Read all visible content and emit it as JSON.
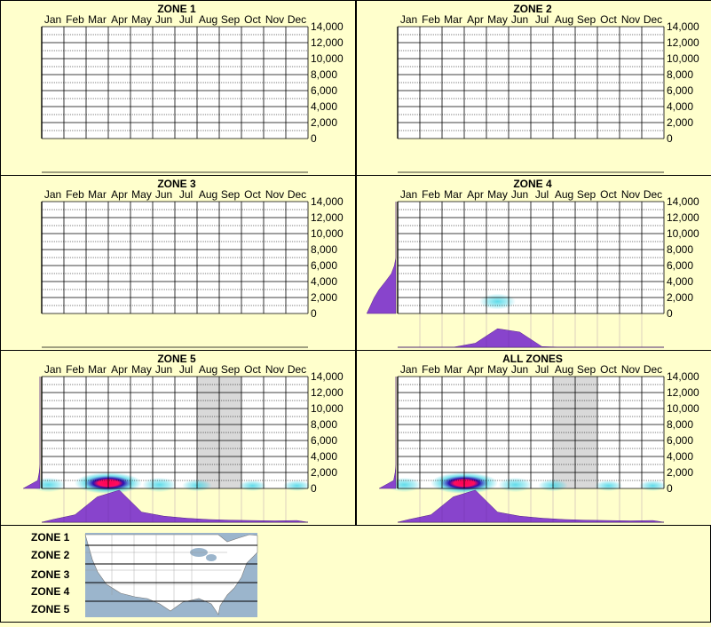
{
  "months": [
    "Jan",
    "Feb",
    "Mar",
    "Apr",
    "May",
    "Jun",
    "Jul",
    "Aug",
    "Sep",
    "Oct",
    "Nov",
    "Dec"
  ],
  "y_ticks": [
    "14,000",
    "12,000",
    "10,000",
    "8,000",
    "6,000",
    "4,000",
    "2,000",
    "0"
  ],
  "colors": {
    "background": "#ffffcc",
    "purple": "#8844cc",
    "grid": "#000000",
    "shade": "#d9d9d9",
    "heat_core": "#ff0055",
    "heat_mid": "#2200aa",
    "heat_outer": "#44d6e6"
  },
  "chart_data": [
    {
      "type": "heatmap",
      "title": "ZONE 1",
      "categories": [
        "Jan",
        "Feb",
        "Mar",
        "Apr",
        "May",
        "Jun",
        "Jul",
        "Aug",
        "Sep",
        "Oct",
        "Nov",
        "Dec"
      ],
      "ylim": [
        0,
        14000
      ],
      "hot_spots": [],
      "shaded_months": [],
      "month_profile": [
        0,
        0,
        0,
        0,
        0,
        0,
        0,
        0,
        0,
        0,
        0,
        0
      ],
      "elevation_profile": []
    },
    {
      "type": "heatmap",
      "title": "ZONE 2",
      "categories": [
        "Jan",
        "Feb",
        "Mar",
        "Apr",
        "May",
        "Jun",
        "Jul",
        "Aug",
        "Sep",
        "Oct",
        "Nov",
        "Dec"
      ],
      "ylim": [
        0,
        14000
      ],
      "hot_spots": [],
      "shaded_months": [],
      "month_profile": [
        0,
        0,
        0,
        0,
        0,
        0,
        0,
        0,
        0,
        0,
        0,
        0
      ],
      "elevation_profile": []
    },
    {
      "type": "heatmap",
      "title": "ZONE 3",
      "categories": [
        "Jan",
        "Feb",
        "Mar",
        "Apr",
        "May",
        "Jun",
        "Jul",
        "Aug",
        "Sep",
        "Oct",
        "Nov",
        "Dec"
      ],
      "ylim": [
        0,
        14000
      ],
      "hot_spots": [],
      "shaded_months": [],
      "month_profile": [
        0,
        0,
        0,
        0,
        0,
        0,
        0,
        0,
        0,
        0,
        0,
        0
      ],
      "elevation_profile": []
    },
    {
      "type": "heatmap",
      "title": "ZONE 4",
      "categories": [
        "Jan",
        "Feb",
        "Mar",
        "Apr",
        "May",
        "Jun",
        "Jul",
        "Aug",
        "Sep",
        "Oct",
        "Nov",
        "Dec"
      ],
      "ylim": [
        0,
        14000
      ],
      "hot_spots": [
        {
          "month": 4.5,
          "elevation": 1500,
          "intensity": 0.35
        }
      ],
      "shaded_months": [],
      "month_profile": [
        0,
        0,
        0,
        0.12,
        0.55,
        0.45,
        0.02,
        0,
        0,
        0,
        0,
        0
      ],
      "elevation_profile": [
        0.78,
        0.68,
        0.58,
        0.45,
        0.28,
        0.12,
        0.04,
        0,
        0,
        0,
        0,
        0,
        0,
        0,
        0
      ]
    },
    {
      "type": "heatmap",
      "title": "ZONE 5",
      "categories": [
        "Jan",
        "Feb",
        "Mar",
        "Apr",
        "May",
        "Jun",
        "Jul",
        "Aug",
        "Sep",
        "Oct",
        "Nov",
        "Dec"
      ],
      "ylim": [
        0,
        14000
      ],
      "hot_spots": [
        {
          "month": 3.0,
          "elevation": 200,
          "intensity": 1.0
        },
        {
          "month": 0.3,
          "elevation": 200,
          "intensity": 0.3
        },
        {
          "month": 5.3,
          "elevation": 200,
          "intensity": 0.3
        },
        {
          "month": 7.0,
          "elevation": 200,
          "intensity": 0.2
        },
        {
          "month": 9.5,
          "elevation": 200,
          "intensity": 0.15
        },
        {
          "month": 11.5,
          "elevation": 200,
          "intensity": 0.15
        }
      ],
      "shaded_months": [
        7,
        8
      ],
      "month_profile": [
        0.08,
        0.22,
        0.75,
        0.95,
        0.3,
        0.18,
        0.12,
        0.08,
        0.06,
        0.05,
        0.04,
        0.05
      ],
      "elevation_profile": [
        0.45,
        0.06,
        0.02,
        0,
        0,
        0,
        0,
        0,
        0,
        0,
        0,
        0,
        0,
        0,
        0
      ]
    },
    {
      "type": "heatmap",
      "title": "ALL ZONES",
      "categories": [
        "Jan",
        "Feb",
        "Mar",
        "Apr",
        "May",
        "Jun",
        "Jul",
        "Aug",
        "Sep",
        "Oct",
        "Nov",
        "Dec"
      ],
      "ylim": [
        0,
        14000
      ],
      "hot_spots": [
        {
          "month": 3.0,
          "elevation": 200,
          "intensity": 1.0
        },
        {
          "month": 0.3,
          "elevation": 200,
          "intensity": 0.3
        },
        {
          "month": 5.3,
          "elevation": 200,
          "intensity": 0.3
        },
        {
          "month": 7.0,
          "elevation": 200,
          "intensity": 0.2
        },
        {
          "month": 9.5,
          "elevation": 200,
          "intensity": 0.15
        },
        {
          "month": 11.5,
          "elevation": 200,
          "intensity": 0.15
        }
      ],
      "shaded_months": [
        7,
        8
      ],
      "month_profile": [
        0.08,
        0.22,
        0.75,
        0.95,
        0.3,
        0.18,
        0.12,
        0.08,
        0.06,
        0.05,
        0.04,
        0.05
      ],
      "elevation_profile": [
        0.45,
        0.06,
        0.02,
        0,
        0,
        0,
        0,
        0,
        0,
        0,
        0,
        0,
        0,
        0,
        0
      ]
    }
  ],
  "legend": {
    "zones": [
      "ZONE 1",
      "ZONE 2",
      "ZONE 3",
      "ZONE 4",
      "ZONE 5"
    ]
  }
}
